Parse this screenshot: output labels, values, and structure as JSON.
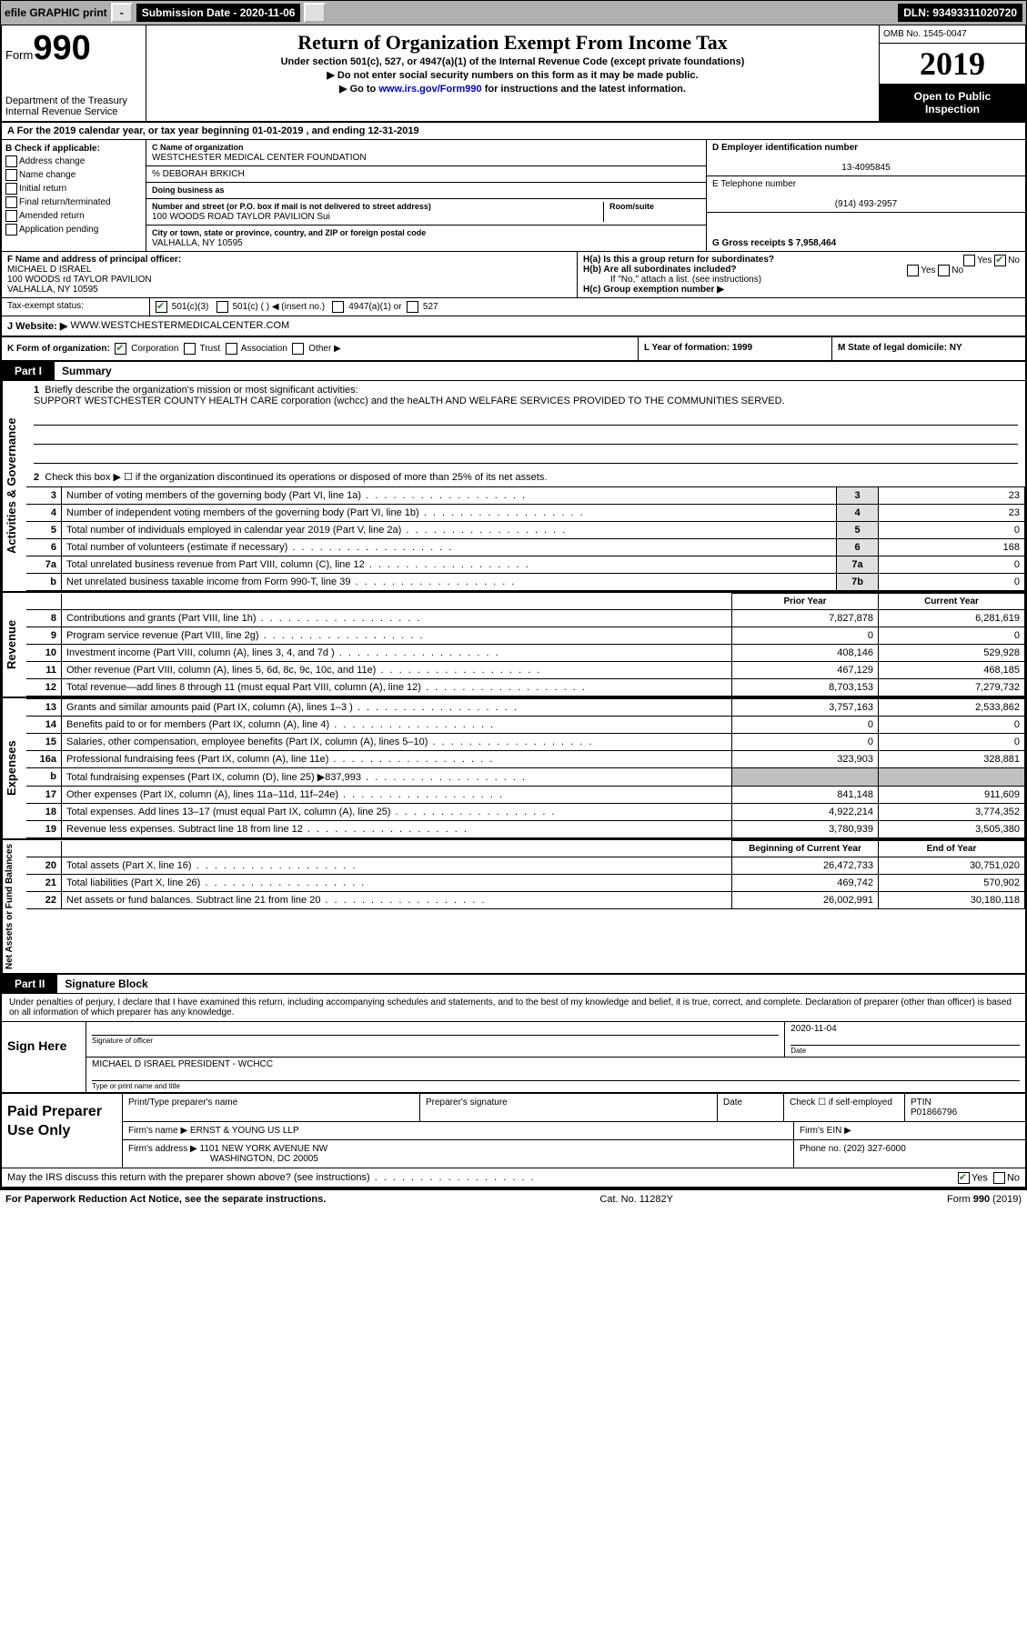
{
  "topbar": {
    "efile": "efile GRAPHIC print",
    "subdate_label": "Submission Date - 2020-11-06",
    "dln": "DLN: 93493311020720"
  },
  "header": {
    "form_word": "Form",
    "form_num": "990",
    "dept1": "Department of the Treasury",
    "dept2": "Internal Revenue Service",
    "title": "Return of Organization Exempt From Income Tax",
    "sub1": "Under section 501(c), 527, or 4947(a)(1) of the Internal Revenue Code (except private foundations)",
    "sub2": "▶ Do not enter social security numbers on this form as it may be made public.",
    "sub3_pre": "▶ Go to ",
    "sub3_link": "www.irs.gov/Form990",
    "sub3_post": " for instructions and the latest information.",
    "omb": "OMB No. 1545-0047",
    "year": "2019",
    "open1": "Open to Public",
    "open2": "Inspection"
  },
  "rowA": "A For the 2019 calendar year, or tax year beginning 01-01-2019    , and ending 12-31-2019",
  "boxB": {
    "title": "B Check if applicable:",
    "opts": [
      "Address change",
      "Name change",
      "Initial return",
      "Final return/terminated",
      "Amended return",
      "Application pending"
    ]
  },
  "boxC": {
    "label": "C Name of organization",
    "org": "WESTCHESTER MEDICAL CENTER FOUNDATION",
    "care": "% DEBORAH BRKICH",
    "dba_label": "Doing business as",
    "addr_label": "Number and street (or P.O. box if mail is not delivered to street address)",
    "room_label": "Room/suite",
    "addr": "100 WOODS ROAD TAYLOR PAVILION Sui",
    "city_label": "City or town, state or province, country, and ZIP or foreign postal code",
    "city": "VALHALLA, NY  10595"
  },
  "boxD": {
    "label": "D Employer identification number",
    "val": "13-4095845"
  },
  "boxE": {
    "label": "E Telephone number",
    "val": "(914) 493-2957"
  },
  "boxG": {
    "label": "G Gross receipts $ 7,958,464"
  },
  "boxF": {
    "label": "F Name and address of principal officer:",
    "name": "MICHAEL D ISRAEL",
    "addr1": "100 WOODS rd TAYLOR PAVILION",
    "addr2": "VALHALLA, NY  10595"
  },
  "boxH": {
    "a": "H(a)  Is this a group return for subordinates?",
    "b": "H(b)  Are all subordinates included?",
    "bnote": "If \"No,\" attach a list. (see instructions)",
    "c": "H(c)  Group exemption number ▶",
    "yes": "Yes",
    "no": "No"
  },
  "taxrow": {
    "label": "Tax-exempt status:",
    "o1": "501(c)(3)",
    "o2": "501(c) (   ) ◀ (insert no.)",
    "o3": "4947(a)(1) or",
    "o4": "527"
  },
  "rowJ": {
    "label": "J  Website: ▶",
    "val": "WWW.WESTCHESTERMEDICALCENTER.COM"
  },
  "rowK": {
    "label": "K Form of organization:",
    "o1": "Corporation",
    "o2": "Trust",
    "o3": "Association",
    "o4": "Other ▶",
    "L": "L Year of formation: 1999",
    "M": "M State of legal domicile: NY"
  },
  "part1": {
    "tag": "Part I",
    "title": "Summary"
  },
  "mission": {
    "num": "1",
    "label": "Briefly describe the organization's mission or most significant activities:",
    "text": "SUPPORT WESTCHESTER COUNTY HEALTH CARE corporation (wchcc) and the heALTH AND WELFARE SERVICES PROVIDED TO THE COMMUNITIES SERVED."
  },
  "gov": {
    "vert": "Activities & Governance",
    "l2": "Check this box ▶ ☐ if the organization discontinued its operations or disposed of more than 25% of its net assets.",
    "rows": [
      {
        "n": "3",
        "d": "Number of voting members of the governing body (Part VI, line 1a)",
        "b": "3",
        "v": "23"
      },
      {
        "n": "4",
        "d": "Number of independent voting members of the governing body (Part VI, line 1b)",
        "b": "4",
        "v": "23"
      },
      {
        "n": "5",
        "d": "Total number of individuals employed in calendar year 2019 (Part V, line 2a)",
        "b": "5",
        "v": "0"
      },
      {
        "n": "6",
        "d": "Total number of volunteers (estimate if necessary)",
        "b": "6",
        "v": "168"
      },
      {
        "n": "7a",
        "d": "Total unrelated business revenue from Part VIII, column (C), line 12",
        "b": "7a",
        "v": "0"
      },
      {
        "n": "b",
        "d": "Net unrelated business taxable income from Form 990-T, line 39",
        "b": "7b",
        "v": "0"
      }
    ]
  },
  "rev": {
    "vert": "Revenue",
    "hdr_prior": "Prior Year",
    "hdr_curr": "Current Year",
    "rows": [
      {
        "n": "8",
        "d": "Contributions and grants (Part VIII, line 1h)",
        "p": "7,827,878",
        "c": "6,281,619"
      },
      {
        "n": "9",
        "d": "Program service revenue (Part VIII, line 2g)",
        "p": "0",
        "c": "0"
      },
      {
        "n": "10",
        "d": "Investment income (Part VIII, column (A), lines 3, 4, and 7d )",
        "p": "408,146",
        "c": "529,928"
      },
      {
        "n": "11",
        "d": "Other revenue (Part VIII, column (A), lines 5, 6d, 8c, 9c, 10c, and 11e)",
        "p": "467,129",
        "c": "468,185"
      },
      {
        "n": "12",
        "d": "Total revenue—add lines 8 through 11 (must equal Part VIII, column (A), line 12)",
        "p": "8,703,153",
        "c": "7,279,732"
      }
    ]
  },
  "exp": {
    "vert": "Expenses",
    "rows": [
      {
        "n": "13",
        "d": "Grants and similar amounts paid (Part IX, column (A), lines 1–3 )",
        "p": "3,757,163",
        "c": "2,533,862"
      },
      {
        "n": "14",
        "d": "Benefits paid to or for members (Part IX, column (A), line 4)",
        "p": "0",
        "c": "0"
      },
      {
        "n": "15",
        "d": "Salaries, other compensation, employee benefits (Part IX, column (A), lines 5–10)",
        "p": "0",
        "c": "0"
      },
      {
        "n": "16a",
        "d": "Professional fundraising fees (Part IX, column (A), line 11e)",
        "p": "323,903",
        "c": "328,881"
      },
      {
        "n": "b",
        "d": "Total fundraising expenses (Part IX, column (D), line 25) ▶837,993",
        "p": "",
        "c": "",
        "gray": true
      },
      {
        "n": "17",
        "d": "Other expenses (Part IX, column (A), lines 11a–11d, 11f–24e)",
        "p": "841,148",
        "c": "911,609"
      },
      {
        "n": "18",
        "d": "Total expenses. Add lines 13–17 (must equal Part IX, column (A), line 25)",
        "p": "4,922,214",
        "c": "3,774,352"
      },
      {
        "n": "19",
        "d": "Revenue less expenses. Subtract line 18 from line 12",
        "p": "3,780,939",
        "c": "3,505,380"
      }
    ]
  },
  "net": {
    "vert": "Net Assets or Fund Balances",
    "hdr_beg": "Beginning of Current Year",
    "hdr_end": "End of Year",
    "rows": [
      {
        "n": "20",
        "d": "Total assets (Part X, line 16)",
        "p": "26,472,733",
        "c": "30,751,020"
      },
      {
        "n": "21",
        "d": "Total liabilities (Part X, line 26)",
        "p": "469,742",
        "c": "570,902"
      },
      {
        "n": "22",
        "d": "Net assets or fund balances. Subtract line 21 from line 20",
        "p": "26,002,991",
        "c": "30,180,118"
      }
    ]
  },
  "part2": {
    "tag": "Part II",
    "title": "Signature Block"
  },
  "sigtext": "Under penalties of perjury, I declare that I have examined this return, including accompanying schedules and statements, and to the best of my knowledge and belief, it is true, correct, and complete. Declaration of preparer (other than officer) is based on all information of which preparer has any knowledge.",
  "sign": {
    "here": "Sign Here",
    "sig_label": "Signature of officer",
    "date_label": "Date",
    "date_val": "2020-11-04",
    "name": "MICHAEL D ISRAEL  PRESIDENT - WCHCC",
    "name_label": "Type or print name and title"
  },
  "prep": {
    "label": "Paid Preparer Use Only",
    "h1": "Print/Type preparer's name",
    "h2": "Preparer's signature",
    "h3": "Date",
    "h4_pre": "Check ☐ if self-employed",
    "h5": "PTIN",
    "ptin": "P01866796",
    "firm_label": "Firm's name    ▶",
    "firm": "ERNST & YOUNG US LLP",
    "ein_label": "Firm's EIN ▶",
    "addr_label": "Firm's address ▶",
    "addr1": "1101 NEW YORK AVENUE NW",
    "addr2": "WASHINGTON, DC  20005",
    "phone_label": "Phone no. (202) 327-6000"
  },
  "discuss": "May the IRS discuss this return with the preparer shown above? (see instructions)",
  "footer": {
    "left": "For Paperwork Reduction Act Notice, see the separate instructions.",
    "mid": "Cat. No. 11282Y",
    "right": "Form 990 (2019)"
  }
}
